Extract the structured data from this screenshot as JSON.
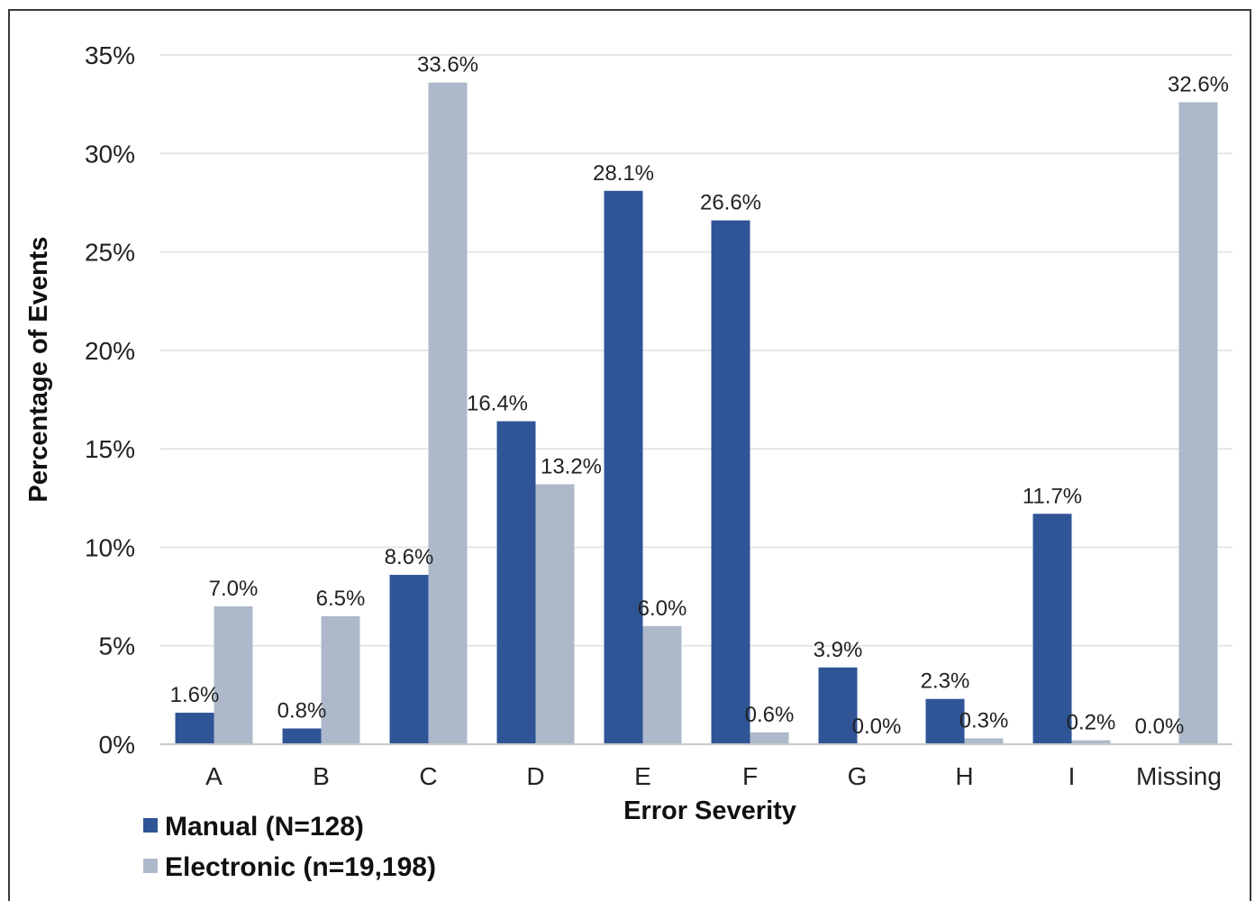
{
  "chart_data": {
    "type": "bar",
    "categories": [
      "A",
      "B",
      "C",
      "D",
      "E",
      "F",
      "G",
      "H",
      "I",
      "Missing"
    ],
    "series": [
      {
        "name": "Manual (N=128)",
        "color": "#2f5597",
        "values": [
          1.6,
          0.8,
          8.6,
          16.4,
          28.1,
          26.6,
          3.9,
          2.3,
          11.7,
          0.0
        ],
        "labels": [
          "1.6%",
          "0.8%",
          "8.6%",
          "16.4%",
          "28.1%",
          "26.6%",
          "3.9%",
          "2.3%",
          "11.7%",
          "0.0%"
        ]
      },
      {
        "name": "Electronic (n=19,198)",
        "color": "#adb9ca",
        "values": [
          7.0,
          6.5,
          33.6,
          13.2,
          6.0,
          0.6,
          0.0,
          0.3,
          0.2,
          32.6
        ],
        "labels": [
          "7.0%",
          "6.5%",
          "33.6%",
          "13.2%",
          "6.0%",
          "0.6%",
          "0.0%",
          "0.3%",
          "0.2%",
          "32.6%"
        ]
      }
    ],
    "ylim": [
      0,
      35
    ],
    "yticks": [
      "0%",
      "5%",
      "10%",
      "15%",
      "20%",
      "25%",
      "30%",
      "35%"
    ],
    "xlabel": "Error Severity",
    "ylabel": "Percentage of  Events",
    "grid": true,
    "legend_position": "bottom-left"
  }
}
